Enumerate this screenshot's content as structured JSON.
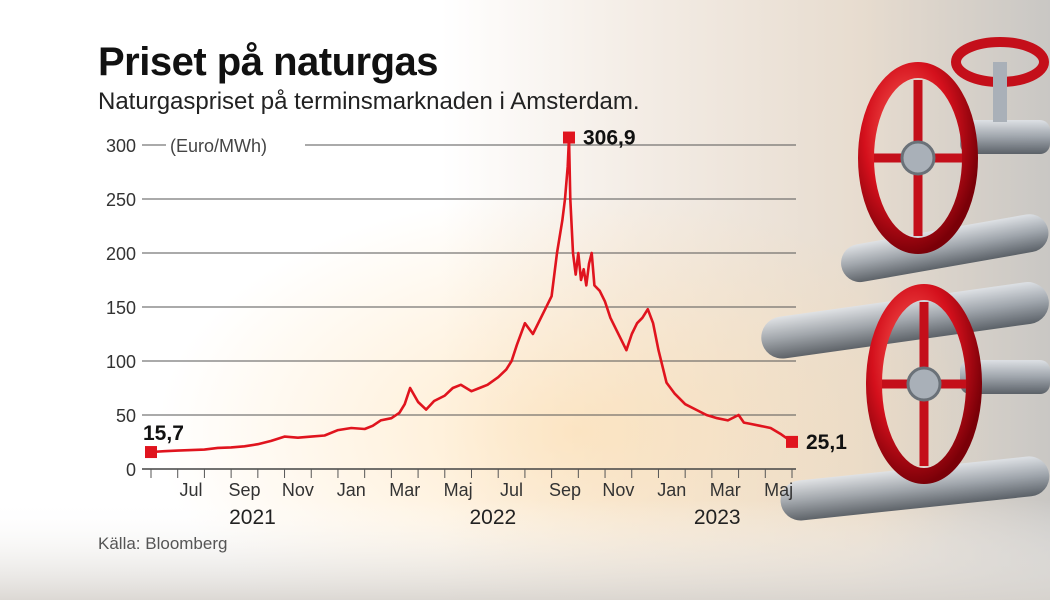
{
  "chart_data": {
    "type": "line",
    "title": "Priset på naturgas",
    "subtitle": "Naturgaspriset på terminsmarknaden i Amsterdam.",
    "unit": "(Euro/MWh)",
    "source": "Källa: Bloomberg",
    "ylim": [
      0,
      300
    ],
    "yticks": [
      "0",
      "50",
      "100",
      "150",
      "200",
      "250",
      "300"
    ],
    "xlim": [
      0,
      24
    ],
    "month_ticks": [
      {
        "x": 1.5,
        "label": "Jul"
      },
      {
        "x": 3.5,
        "label": "Sep"
      },
      {
        "x": 5.5,
        "label": "Nov"
      },
      {
        "x": 7.5,
        "label": "Jan"
      },
      {
        "x": 9.5,
        "label": "Mar"
      },
      {
        "x": 11.5,
        "label": "Maj"
      },
      {
        "x": 13.5,
        "label": "Jul"
      },
      {
        "x": 15.5,
        "label": "Sep"
      },
      {
        "x": 17.5,
        "label": "Nov"
      },
      {
        "x": 19.5,
        "label": "Jan"
      },
      {
        "x": 21.5,
        "label": "Mar"
      },
      {
        "x": 23.5,
        "label": "Maj"
      }
    ],
    "years": [
      {
        "x": 3.8,
        "label": "2021"
      },
      {
        "x": 12.8,
        "label": "2022"
      },
      {
        "x": 21.2,
        "label": "2023"
      }
    ],
    "series": [
      {
        "name": "Naturgaspris",
        "color": "#e0141e",
        "x": [
          0,
          0.5,
          1,
          1.5,
          2,
          2.5,
          3,
          3.5,
          4,
          4.5,
          5,
          5.5,
          6,
          6.5,
          7,
          7.5,
          8,
          8.3,
          8.6,
          9,
          9.3,
          9.5,
          9.7,
          10,
          10.3,
          10.6,
          11,
          11.3,
          11.6,
          12,
          12.3,
          12.6,
          13,
          13.3,
          13.5,
          13.7,
          14,
          14.3,
          14.6,
          15,
          15.2,
          15.4,
          15.5,
          15.6,
          15.65,
          15.7,
          15.8,
          15.9,
          16,
          16.1,
          16.2,
          16.3,
          16.4,
          16.5,
          16.6,
          16.8,
          17,
          17.2,
          17.4,
          17.6,
          17.8,
          18,
          18.2,
          18.4,
          18.6,
          18.8,
          19,
          19.3,
          19.6,
          20,
          20.4,
          20.8,
          21.2,
          21.6,
          22,
          22.2,
          22.4,
          22.8,
          23.2,
          23.6,
          24
        ],
        "values": [
          15.7,
          16.5,
          17,
          17.5,
          18,
          19.5,
          20,
          21,
          23,
          26,
          30,
          29,
          30,
          31,
          36,
          38,
          37,
          40,
          45,
          47,
          52,
          60,
          75,
          62,
          55,
          63,
          68,
          75,
          78,
          72,
          75,
          78,
          85,
          92,
          100,
          115,
          135,
          125,
          140,
          160,
          200,
          230,
          250,
          280,
          306.9,
          250,
          200,
          180,
          200,
          175,
          185,
          170,
          190,
          200,
          170,
          165,
          155,
          140,
          130,
          120,
          110,
          125,
          135,
          140,
          148,
          135,
          110,
          80,
          70,
          60,
          55,
          50,
          47,
          45,
          50,
          43,
          42,
          40,
          38,
          32,
          25.1
        ]
      }
    ],
    "annotations": [
      {
        "x": 0,
        "y": 15.7,
        "label": "15,7",
        "anchor": "above-right"
      },
      {
        "x": 15.65,
        "y": 306.9,
        "label": "306,9",
        "anchor": "right"
      },
      {
        "x": 24,
        "y": 25.1,
        "label": "25,1",
        "anchor": "right"
      }
    ]
  }
}
